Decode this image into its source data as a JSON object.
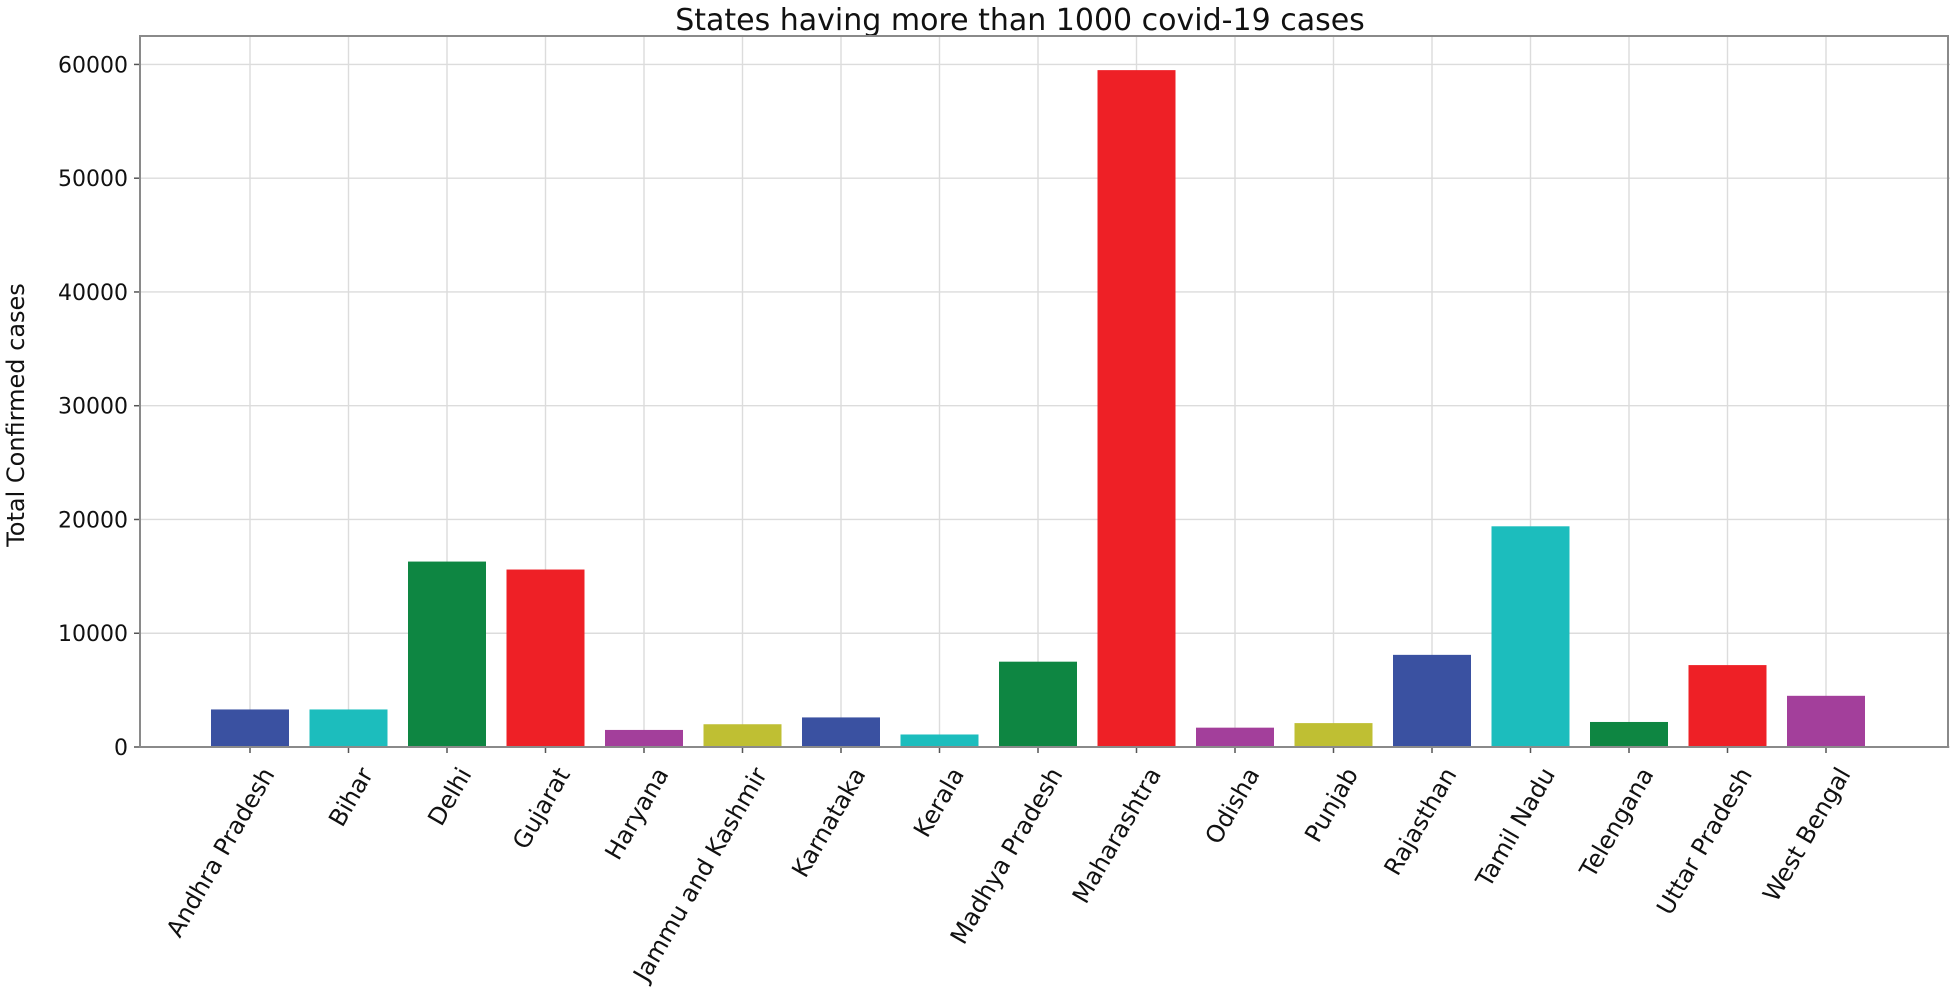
{
  "chart_data": {
    "type": "bar",
    "title": "States having more than 1000 covid-19 cases",
    "xlabel": "",
    "ylabel": "Total Confirmed cases",
    "ylim": [
      0,
      62500
    ],
    "yticks": [
      0,
      10000,
      20000,
      30000,
      40000,
      50000,
      60000
    ],
    "ytick_labels": [
      "0",
      "10000",
      "20000",
      "30000",
      "40000",
      "50000",
      "60000"
    ],
    "grid": true,
    "categories": [
      "Andhra Pradesh",
      "Bihar",
      "Delhi",
      "Gujarat",
      "Haryana",
      "Jammu and Kashmir",
      "Karnataka",
      "Kerala",
      "Madhya Pradesh",
      "Maharashtra",
      "Odisha",
      "Punjab",
      "Rajasthan",
      "Tamil Nadu",
      "Telengana",
      "Uttar Pradesh",
      "West Bengal"
    ],
    "values": [
      3300,
      3300,
      16300,
      15600,
      1500,
      2000,
      2600,
      1100,
      7500,
      59500,
      1700,
      2100,
      8100,
      19400,
      2200,
      7200,
      4500
    ],
    "colors": [
      "#3a51a1",
      "#1cbdbd",
      "#0e8642",
      "#ee2026",
      "#a33f9b",
      "#bfbf33",
      "#3a51a1",
      "#1cbdbd",
      "#0e8642",
      "#ee2026",
      "#a33f9b",
      "#bfbf33",
      "#3a51a1",
      "#1cbdbd",
      "#0e8642",
      "#ee2026",
      "#a33f9b"
    ]
  }
}
